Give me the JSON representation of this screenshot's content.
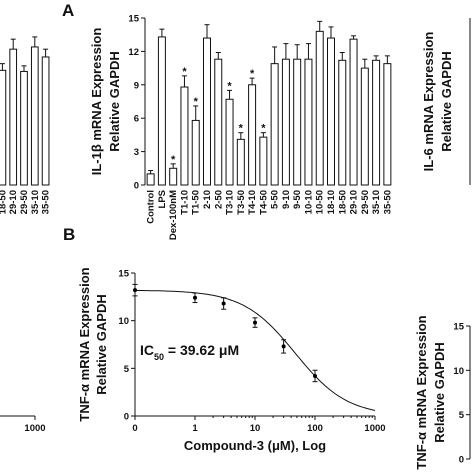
{
  "chart_data": [
    {
      "type": "bar",
      "categories": [
        "18-50",
        "29-10",
        "29-50",
        "35-10",
        "35-50"
      ],
      "values": [
        10.3,
        12.2,
        10.2,
        12.4,
        11.5
      ],
      "errors": [
        0.6,
        0.9,
        0.5,
        0.9,
        0.7
      ],
      "ylim": [
        0,
        15
      ],
      "color": "#ffffff"
    },
    {
      "type": "bar",
      "panel_label": "A",
      "ylabel": [
        "IL-1β mRNA Expression",
        "Relative GAPDH"
      ],
      "categories": [
        "Control",
        "LPS",
        "Dex-100nM",
        "T1-10",
        "T1-50",
        "2-10",
        "2-50",
        "T3-10",
        "T3-50",
        "T4-10",
        "T4-50",
        "5-50",
        "9-10",
        "9-50",
        "10-10",
        "10-50",
        "18-10",
        "18-50",
        "29-10",
        "29-50",
        "35-10",
        "35-50"
      ],
      "values": [
        1.0,
        13.3,
        1.5,
        8.8,
        5.8,
        13.2,
        11.3,
        7.7,
        4.1,
        9.0,
        4.3,
        10.9,
        11.3,
        11.3,
        11.3,
        13.8,
        13.2,
        11.2,
        13.1,
        10.5,
        11.2,
        10.9
      ],
      "errors": [
        0.3,
        0.7,
        0.4,
        1.0,
        1.3,
        1.2,
        0.6,
        0.8,
        0.6,
        0.6,
        0.4,
        1.5,
        1.4,
        1.3,
        1.4,
        0.9,
        1.0,
        0.7,
        0.3,
        0.8,
        0.4,
        0.7
      ],
      "significance": [
        null,
        null,
        "*",
        "*",
        "*",
        null,
        null,
        "*",
        "*",
        "*",
        "*",
        null,
        null,
        null,
        null,
        null,
        null,
        null,
        null,
        null,
        null,
        null
      ],
      "ylim": [
        0,
        15
      ],
      "yticks": [
        0,
        3,
        6,
        9,
        12,
        15
      ],
      "color": "#ffffff"
    },
    {
      "type": "bar",
      "ylabel": [
        "IL-6 mRNA Expression",
        "Relative GAPDH"
      ],
      "ylim": [
        0,
        15
      ]
    },
    {
      "type": "line",
      "xscale": "log",
      "xlim": [
        0,
        1000
      ],
      "xticks": [
        1000
      ]
    },
    {
      "type": "line",
      "panel_label": "B",
      "ylabel": [
        "TNF-α mRNA Expression",
        "Relative GAPDH"
      ],
      "xlabel": "Compound-3 (μM), Log",
      "annotation": [
        "IC",
        "50",
        " = 39.62 μM"
      ],
      "xscale": "log",
      "x": [
        0,
        1,
        3,
        10,
        30,
        100
      ],
      "values": [
        13.2,
        12.4,
        11.8,
        9.8,
        7.3,
        4.2
      ],
      "errors": [
        0.6,
        0.5,
        0.6,
        0.5,
        0.7,
        0.6
      ],
      "xlim": [
        0,
        1000
      ],
      "xticks": [
        0,
        1,
        10,
        100,
        1000
      ],
      "ylim": [
        0,
        15
      ],
      "yticks": [
        0,
        5,
        10,
        15
      ],
      "color": "#000000"
    },
    {
      "type": "line",
      "ylabel": [
        "TNF-α mRNA Expression",
        "Relative GAPDH"
      ],
      "ylim": [
        0,
        15
      ],
      "yticks": [
        0,
        5,
        10,
        15
      ]
    }
  ]
}
